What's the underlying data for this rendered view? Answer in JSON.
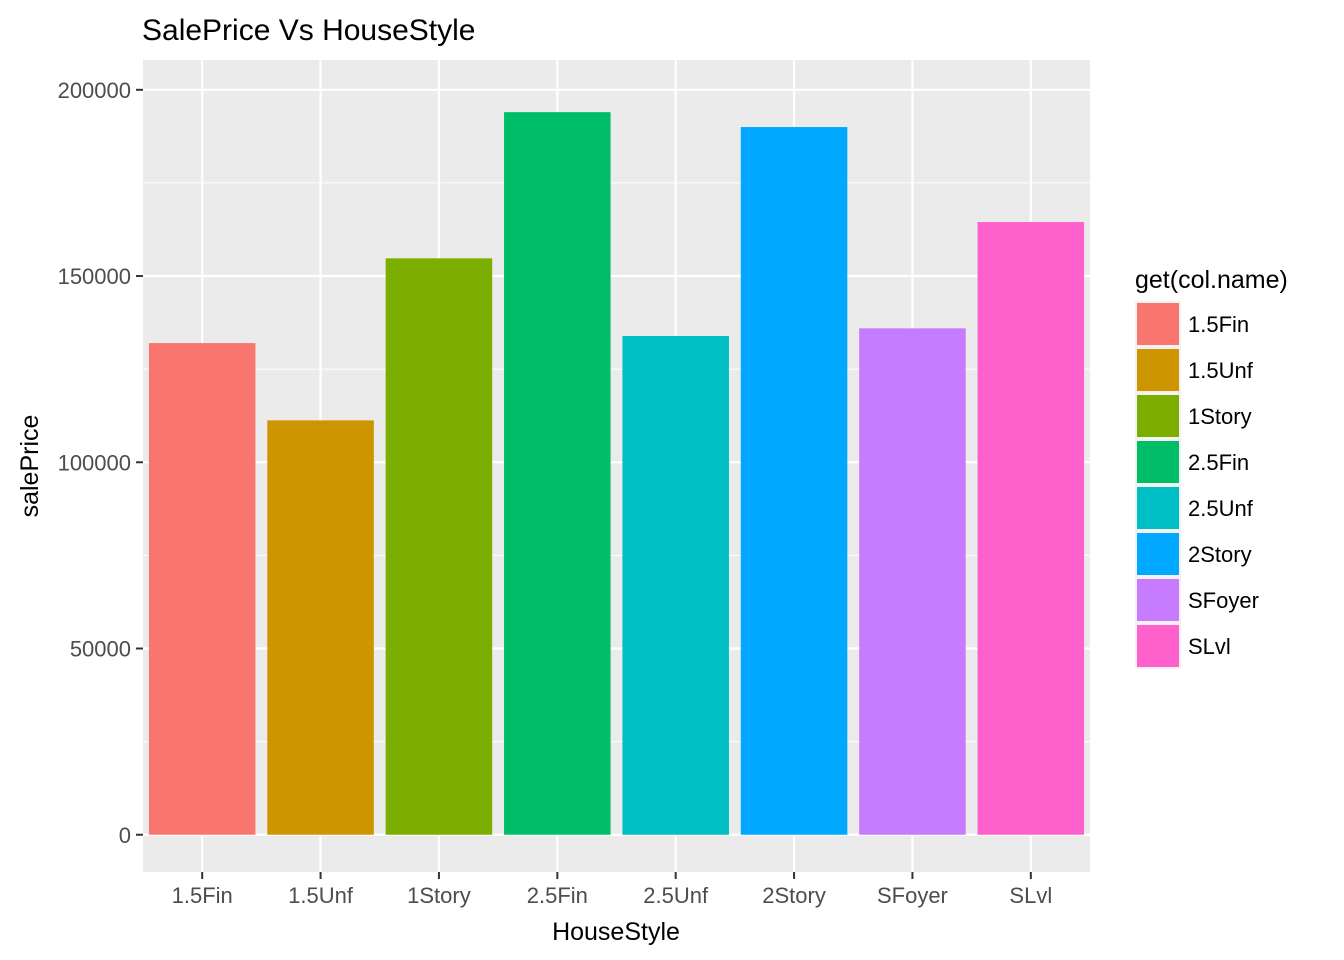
{
  "chart_data": {
    "type": "bar",
    "title": "SalePrice Vs HouseStyle",
    "xlabel": "HouseStyle",
    "ylabel": "salePrice",
    "categories": [
      "1.5Fin",
      "1.5Unf",
      "1Story",
      "2.5Fin",
      "2.5Unf",
      "2Story",
      "SFoyer",
      "SLvl"
    ],
    "values": [
      132000,
      111250,
      154750,
      194000,
      133900,
      190000,
      135960,
      164500
    ],
    "colors": [
      "#F8766D",
      "#CD9600",
      "#7CAE00",
      "#00BE67",
      "#00BFC4",
      "#00A9FF",
      "#C77CFF",
      "#FF61CC"
    ],
    "ylim": [
      -10000,
      208000
    ],
    "yticks": [
      0,
      50000,
      100000,
      150000,
      200000
    ],
    "ytick_labels": [
      "0",
      "50000",
      "100000",
      "150000",
      "200000"
    ],
    "legend": {
      "title": "get(col.name)",
      "position": "right",
      "entries": [
        "1.5Fin",
        "1.5Unf",
        "1Story",
        "2.5Fin",
        "2.5Unf",
        "2Story",
        "SFoyer",
        "SLvl"
      ]
    },
    "grid": true,
    "panel_background": "#EBEBEB",
    "grid_color": "#FFFFFF"
  }
}
